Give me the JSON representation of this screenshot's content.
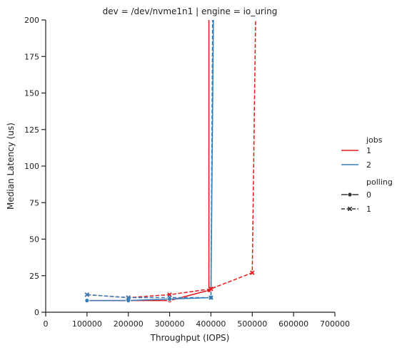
{
  "chart_data": {
    "type": "line",
    "title": "dev = /dev/nvme1n1 | engine = io_uring",
    "xlabel": "Throughput (IOPS)",
    "ylabel": "Median Latency (us)",
    "xlim": [
      0,
      700000
    ],
    "ylim": [
      0,
      200
    ],
    "xticks": [
      0,
      100000,
      200000,
      300000,
      400000,
      500000,
      600000,
      700000
    ],
    "xtick_labels": [
      "0",
      "100000",
      "200000",
      "300000",
      "400000",
      "500000",
      "600000",
      "700000"
    ],
    "yticks": [
      0,
      25,
      50,
      75,
      100,
      125,
      150,
      175,
      200
    ],
    "ytick_labels": [
      "0",
      "25",
      "50",
      "75",
      "100",
      "125",
      "150",
      "175",
      "200"
    ],
    "grid": false,
    "legend_placement": "right",
    "legend": {
      "jobs_title": "jobs",
      "jobs": [
        {
          "label": "1",
          "color": "#e41a1c"
        },
        {
          "label": "2",
          "color": "#377eb8"
        }
      ],
      "polling_title": "polling",
      "polling": [
        {
          "label": "0",
          "dash": "solid",
          "marker": "circle"
        },
        {
          "label": "1",
          "dash": "dashed",
          "marker": "x"
        }
      ]
    },
    "series": [
      {
        "jobs": "1",
        "polling": "0",
        "color": "#e41a1c",
        "dash": "solid",
        "marker": "circle",
        "points": [
          [
            100000,
            8
          ],
          [
            200000,
            8
          ],
          [
            300000,
            8
          ],
          [
            395000,
            15
          ],
          [
            395000,
            200
          ]
        ]
      },
      {
        "jobs": "1",
        "polling": "1",
        "color": "#e41a1c",
        "dash": "dashed",
        "marker": "x",
        "points": [
          [
            100000,
            12
          ],
          [
            200000,
            10
          ],
          [
            300000,
            12
          ],
          [
            400000,
            16
          ],
          [
            500000,
            27
          ],
          [
            508000,
            200
          ]
        ]
      },
      {
        "jobs": "2",
        "polling": "0",
        "color": "#377eb8",
        "dash": "solid",
        "marker": "circle",
        "points": [
          [
            100000,
            8
          ],
          [
            200000,
            8
          ],
          [
            300000,
            9
          ],
          [
            400000,
            10
          ],
          [
            406000,
            200
          ]
        ]
      },
      {
        "jobs": "2",
        "polling": "1",
        "color": "#377eb8",
        "dash": "dashed",
        "marker": "x",
        "points": [
          [
            100000,
            12
          ],
          [
            200000,
            10
          ],
          [
            300000,
            10
          ],
          [
            400000,
            10
          ],
          [
            404000,
            200
          ]
        ]
      }
    ]
  }
}
